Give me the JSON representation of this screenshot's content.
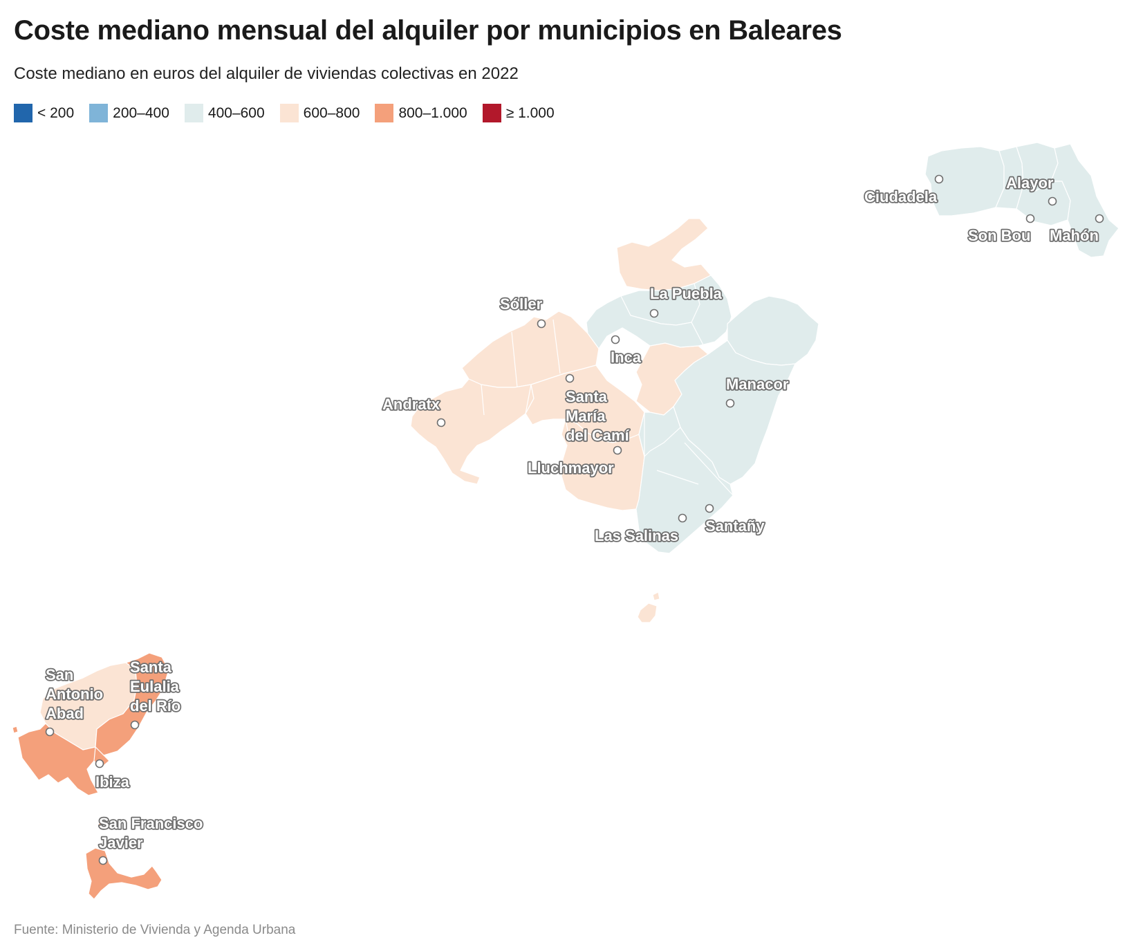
{
  "title": "Coste mediano mensual del alquiler por municipios en Baleares",
  "subtitle": "Coste mediano en euros del alquiler de viviendas colectivas en 2022",
  "legend": [
    {
      "label": "< 200",
      "color": "#2166ac"
    },
    {
      "label": "200–400",
      "color": "#7fb4d8"
    },
    {
      "label": "400–600",
      "color": "#e0ecec"
    },
    {
      "label": "600–800",
      "color": "#fbe4d4"
    },
    {
      "label": "800–1.000",
      "color": "#f4a07b"
    },
    {
      "label": "≥ 1.000",
      "color": "#b2182b"
    }
  ],
  "cities": [
    {
      "name": "Ciudadela",
      "island": "Menorca"
    },
    {
      "name": "Alayor",
      "island": "Menorca"
    },
    {
      "name": "Son Bou",
      "island": "Menorca"
    },
    {
      "name": "Mahón",
      "island": "Menorca"
    },
    {
      "name": "La Puebla",
      "island": "Mallorca"
    },
    {
      "name": "Sóller",
      "island": "Mallorca"
    },
    {
      "name": "Inca",
      "island": "Mallorca"
    },
    {
      "name": "Manacor",
      "island": "Mallorca"
    },
    {
      "name": "Andratx",
      "island": "Mallorca"
    },
    {
      "name": "Santa María del Camí",
      "lines": [
        "Santa",
        "María",
        "del Camí"
      ],
      "island": "Mallorca"
    },
    {
      "name": "Lluchmayor",
      "island": "Mallorca"
    },
    {
      "name": "Santañy",
      "island": "Mallorca"
    },
    {
      "name": "Las Salinas",
      "island": "Mallorca"
    },
    {
      "name": "San Antonio Abad",
      "lines": [
        "San",
        "Antonio",
        "Abad"
      ],
      "island": "Ibiza"
    },
    {
      "name": "Santa Eulalia del Río",
      "lines": [
        "Santa",
        "Eulalia",
        "del Río"
      ],
      "island": "Ibiza"
    },
    {
      "name": "Ibiza",
      "island": "Ibiza"
    },
    {
      "name": "San Francisco Javier",
      "lines": [
        "San Francisco",
        "Javier"
      ],
      "island": "Formentera"
    }
  ],
  "footer": "Fuente: Ministerio de Vivienda y Agenda Urbana"
}
